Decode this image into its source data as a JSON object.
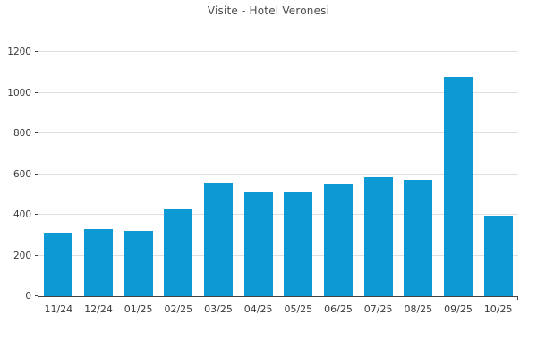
{
  "page": {
    "background": "#ffffff"
  },
  "chart_data": {
    "type": "bar",
    "title": "Visite - Hotel Veronesi",
    "categories": [
      "11/24",
      "12/24",
      "01/25",
      "02/25",
      "03/25",
      "04/25",
      "05/25",
      "06/25",
      "07/25",
      "08/25",
      "09/25",
      "10/25"
    ],
    "values": [
      310,
      330,
      320,
      425,
      555,
      510,
      515,
      550,
      585,
      570,
      1075,
      395
    ],
    "xlabel": "",
    "ylabel": "",
    "ylim": [
      0,
      1200
    ],
    "ytick_step": 200,
    "yticks": [
      0,
      200,
      400,
      600,
      800,
      1000,
      1200
    ],
    "grid": "horizontal",
    "legend": "none"
  },
  "colors": {
    "bar": "#0d9ad4",
    "gridline": "#e0e0e0",
    "axis": "#444444",
    "tick_label": "#3a3a3a",
    "title": "#4a4a4a",
    "background": "#ffffff"
  }
}
